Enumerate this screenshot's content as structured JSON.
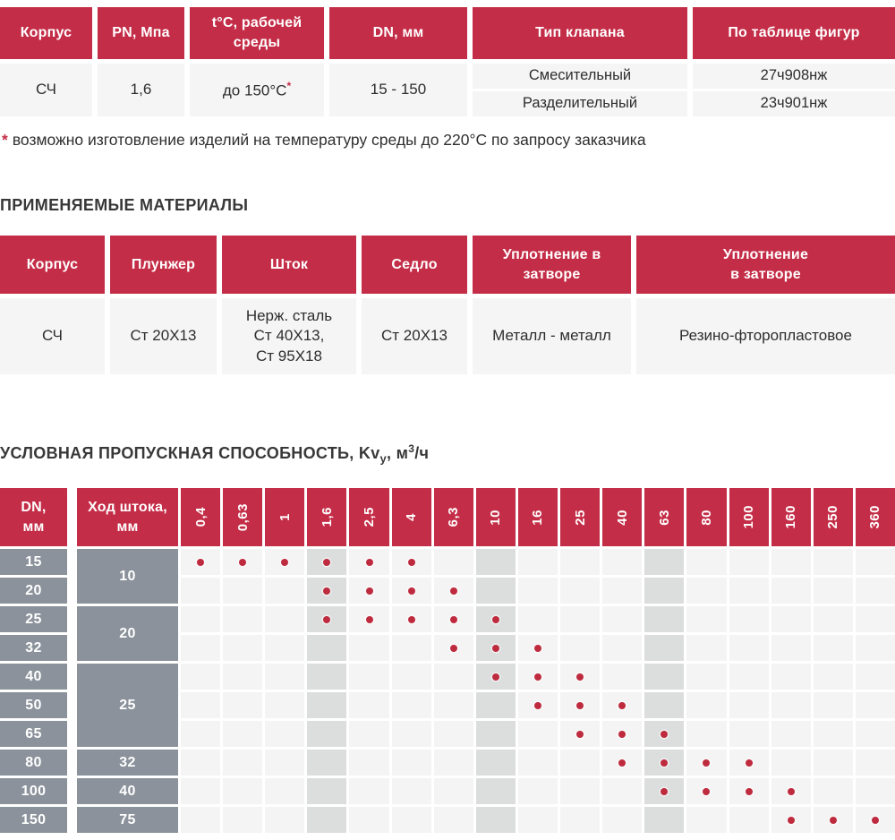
{
  "colors": {
    "accent_red": "#c42d47",
    "slate_gray": "#8b929b",
    "cell_bg": "#f4f4f4",
    "shaded_bg": "#dcdddd",
    "dot_red": "#bf2b3e",
    "text_dark": "#2d2d2d"
  },
  "specs_table": {
    "columns": [
      {
        "header_lines": [
          "Корпус"
        ],
        "value": "СЧ"
      },
      {
        "header_lines": [
          "PN, Мпа"
        ],
        "value": "1,6"
      },
      {
        "header_lines": [
          "t°C, рабочей",
          "среды"
        ],
        "value": "до 150°C",
        "value_star": "*"
      },
      {
        "header_lines": [
          "DN, мм"
        ],
        "value": "15 - 150"
      },
      {
        "header_lines": [
          "Тип клапана"
        ],
        "values": [
          "Смесительный",
          "Разделительный"
        ]
      },
      {
        "header_lines": [
          "По таблице фигур"
        ],
        "values": [
          "27ч908нж",
          "23ч901нж"
        ]
      }
    ]
  },
  "footnote": {
    "star": "*",
    "text": "возможно изготовление изделий на температуру среды до 220°C по запросу заказчика"
  },
  "materials_table": {
    "title": "ПРИМЕНЯЕМЫЕ МАТЕРИАЛЫ",
    "columns": [
      {
        "header_lines": [
          "Корпус"
        ],
        "value_lines": [
          "СЧ"
        ]
      },
      {
        "header_lines": [
          "Плунжер"
        ],
        "value_lines": [
          "Ст 20Х13"
        ]
      },
      {
        "header_lines": [
          "Шток"
        ],
        "value_lines": [
          "Нерж. сталь",
          "Ст 40Х13,",
          "Ст 95Х18"
        ]
      },
      {
        "header_lines": [
          "Седло"
        ],
        "value_lines": [
          "Ст 20Х13"
        ]
      },
      {
        "header_lines": [
          "Уплотнение в",
          "затворе"
        ],
        "value_lines": [
          "Металл - металл"
        ]
      },
      {
        "header_lines": [
          "Уплотнение",
          "в затворе"
        ],
        "value_lines": [
          "Резино-фторопластовое"
        ]
      }
    ]
  },
  "kv_table": {
    "title_parts": {
      "prefix": "УСЛОВНАЯ ПРОПУСКНАЯ СПОСОБНОСТЬ, Kv",
      "sub": "у",
      "mid": ", м",
      "sup": "3",
      "suffix": "/ч"
    },
    "dn_header_lines": [
      "DN,",
      "мм"
    ],
    "stroke_header_lines": [
      "Ход штока,",
      "мм"
    ],
    "kv_columns": [
      "0,4",
      "0,63",
      "1",
      "1,6",
      "2,5",
      "4",
      "6,3",
      "10",
      "16",
      "25",
      "40",
      "63",
      "80",
      "100",
      "160",
      "250",
      "360"
    ],
    "shaded_columns": [
      "1,6",
      "10",
      "63"
    ],
    "groups": [
      {
        "stroke": "10",
        "rows": [
          {
            "dn": "15",
            "kv_dots": [
              "0,4",
              "0,63",
              "1",
              "1,6",
              "2,5",
              "4"
            ]
          },
          {
            "dn": "20",
            "kv_dots": [
              "1,6",
              "2,5",
              "4",
              "6,3"
            ]
          }
        ]
      },
      {
        "stroke": "20",
        "rows": [
          {
            "dn": "25",
            "kv_dots": [
              "1,6",
              "2,5",
              "4",
              "6,3",
              "10"
            ]
          },
          {
            "dn": "32",
            "kv_dots": [
              "6,3",
              "10",
              "16"
            ]
          }
        ]
      },
      {
        "stroke": "25",
        "rows": [
          {
            "dn": "40",
            "kv_dots": [
              "10",
              "16",
              "25"
            ]
          },
          {
            "dn": "50",
            "kv_dots": [
              "16",
              "25",
              "40"
            ]
          },
          {
            "dn": "65",
            "kv_dots": [
              "25",
              "40",
              "63"
            ]
          }
        ]
      },
      {
        "stroke": "32",
        "rows": [
          {
            "dn": "80",
            "kv_dots": [
              "40",
              "63",
              "80",
              "100"
            ]
          }
        ]
      },
      {
        "stroke": "40",
        "rows": [
          {
            "dn": "100",
            "kv_dots": [
              "63",
              "80",
              "100",
              "160"
            ]
          }
        ]
      },
      {
        "stroke": "75",
        "rows": [
          {
            "dn": "150",
            "kv_dots": [
              "160",
              "250",
              "360"
            ]
          }
        ]
      }
    ]
  }
}
